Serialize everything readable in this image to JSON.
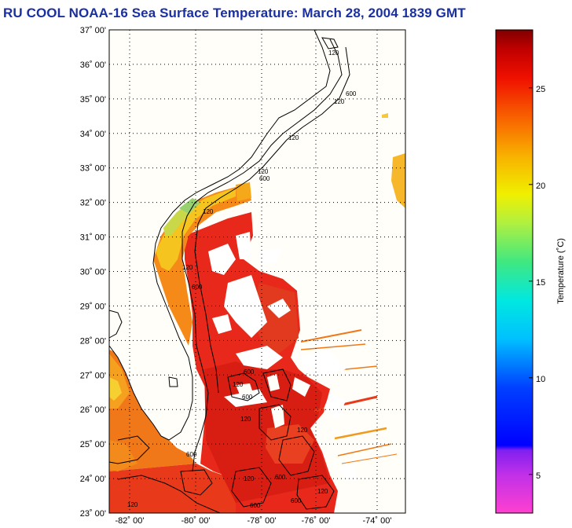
{
  "title": "RU COOL  NOAA-16  Sea Surface Temperature:  March 28, 2004 1839 GMT",
  "lat_labels": [
    "37˚ 00'",
    "36˚ 00'",
    "35˚ 00'",
    "34˚ 00'",
    "33˚ 00'",
    "32˚ 00'",
    "31˚ 00'",
    "30˚ 00'",
    "29˚ 00'",
    "28˚ 00'",
    "27˚ 00'",
    "26˚ 00'",
    "25˚ 00'",
    "24˚ 00'",
    "23˚ 00'"
  ],
  "lon_labels": [
    "-82˚ 00'",
    "-80˚ 00'",
    "-78˚ 00'",
    "-76˚ 00'",
    "-74˚ 00'"
  ],
  "colorbar": {
    "label": "Temperature (˚C)",
    "ticks": [
      "25",
      "20",
      "15",
      "10",
      "5"
    ],
    "tick_values": [
      25,
      20,
      15,
      10,
      5
    ],
    "min": 3,
    "max": 28
  },
  "contour_labels": [
    "120",
    "120",
    "600",
    "120",
    "120",
    "600",
    "120",
    "120",
    "600",
    "600",
    "600",
    "120",
    "600",
    "120",
    "120",
    "600",
    "120",
    "600",
    "600",
    "120",
    "120"
  ],
  "colors": {
    "title": "#1a2fa0",
    "ocean_warm": "#e8281a",
    "ocean_hot": "#d81e12",
    "shelf_cool": "#f6b81a",
    "shelf_mid": "#f07c18",
    "cloud": "#ffffff"
  }
}
